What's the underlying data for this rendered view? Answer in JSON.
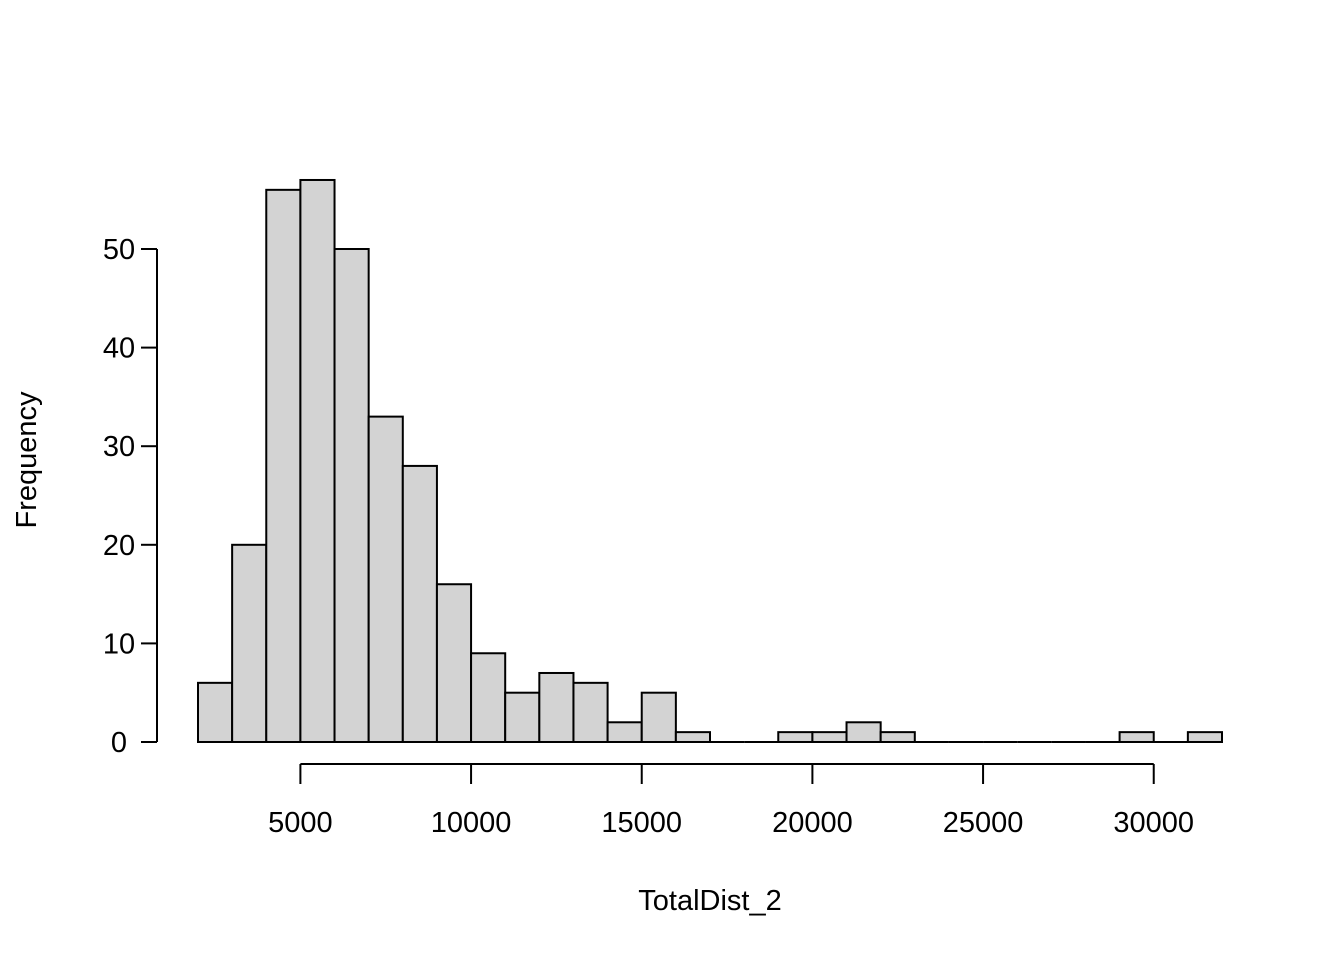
{
  "chart_data": {
    "type": "bar",
    "subtype": "histogram",
    "title": "",
    "xlabel": "TotalDist_2",
    "ylabel": "Frequency",
    "bin_width": 1000,
    "bins": [
      {
        "start": 2000,
        "end": 3000,
        "count": 6
      },
      {
        "start": 3000,
        "end": 4000,
        "count": 20
      },
      {
        "start": 4000,
        "end": 5000,
        "count": 56
      },
      {
        "start": 5000,
        "end": 6000,
        "count": 57
      },
      {
        "start": 6000,
        "end": 7000,
        "count": 50
      },
      {
        "start": 7000,
        "end": 8000,
        "count": 33
      },
      {
        "start": 8000,
        "end": 9000,
        "count": 28
      },
      {
        "start": 9000,
        "end": 10000,
        "count": 16
      },
      {
        "start": 10000,
        "end": 11000,
        "count": 9
      },
      {
        "start": 11000,
        "end": 12000,
        "count": 5
      },
      {
        "start": 12000,
        "end": 13000,
        "count": 7
      },
      {
        "start": 13000,
        "end": 14000,
        "count": 6
      },
      {
        "start": 14000,
        "end": 15000,
        "count": 2
      },
      {
        "start": 15000,
        "end": 16000,
        "count": 5
      },
      {
        "start": 16000,
        "end": 17000,
        "count": 1
      },
      {
        "start": 17000,
        "end": 18000,
        "count": 0
      },
      {
        "start": 18000,
        "end": 19000,
        "count": 0
      },
      {
        "start": 19000,
        "end": 20000,
        "count": 1
      },
      {
        "start": 20000,
        "end": 21000,
        "count": 1
      },
      {
        "start": 21000,
        "end": 22000,
        "count": 2
      },
      {
        "start": 22000,
        "end": 23000,
        "count": 1
      },
      {
        "start": 23000,
        "end": 24000,
        "count": 0
      },
      {
        "start": 24000,
        "end": 25000,
        "count": 0
      },
      {
        "start": 25000,
        "end": 26000,
        "count": 0
      },
      {
        "start": 26000,
        "end": 27000,
        "count": 0
      },
      {
        "start": 27000,
        "end": 28000,
        "count": 0
      },
      {
        "start": 28000,
        "end": 29000,
        "count": 0
      },
      {
        "start": 29000,
        "end": 30000,
        "count": 1
      },
      {
        "start": 30000,
        "end": 31000,
        "count": 0
      },
      {
        "start": 31000,
        "end": 32000,
        "count": 1
      }
    ],
    "x_ticks": [
      5000,
      10000,
      15000,
      20000,
      25000,
      30000
    ],
    "y_ticks": [
      0,
      10,
      20,
      30,
      40,
      50
    ],
    "xlim": [
      2000,
      32000
    ],
    "ylim": [
      0,
      57
    ],
    "grid": false,
    "legend": "none",
    "bar_color": "#d3d3d3",
    "edge_color": "#000000"
  }
}
